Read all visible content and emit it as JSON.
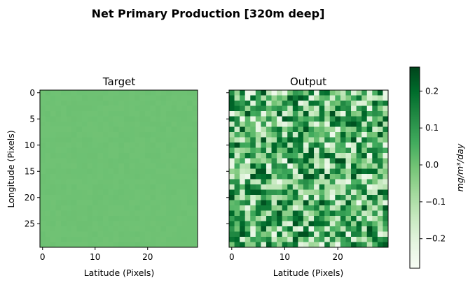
{
  "figure": {
    "suptitle": "Net Primary Production [320m deep]"
  },
  "chart_data": [
    {
      "type": "heatmap",
      "title": "Target",
      "xlabel": "Latitude (Pixels)",
      "ylabel": "Longitude (Pixels)",
      "grid_size": [
        30,
        30
      ],
      "x_ticks": [
        0,
        10,
        20
      ],
      "y_ticks": [
        0,
        5,
        10,
        15,
        20,
        25
      ],
      "value_description": "nearly uniform field around 0.0 mg/m^3/day",
      "base_value": 0.0
    },
    {
      "type": "heatmap",
      "title": "Output",
      "xlabel": "Latitude (Pixels)",
      "ylabel": "",
      "grid_size": [
        30,
        30
      ],
      "x_ticks": [
        0,
        10,
        20
      ],
      "y_ticks": [
        0,
        5,
        10,
        15,
        20,
        25
      ],
      "y_tick_labels_shown": false,
      "value_description": "noisy field with values spanning roughly -0.25 to 0.25",
      "value_range": [
        -0.25,
        0.25
      ]
    }
  ],
  "colorbar": {
    "colormap": "Greens",
    "vmin": -0.28,
    "vmax": 0.265,
    "ticks": [
      0.2,
      0.1,
      0.0,
      -0.1,
      -0.2
    ],
    "tick_labels": [
      "0.2",
      "0.1",
      "0.0",
      "−0.1",
      "−0.2"
    ],
    "label": "mg/m³/day"
  }
}
